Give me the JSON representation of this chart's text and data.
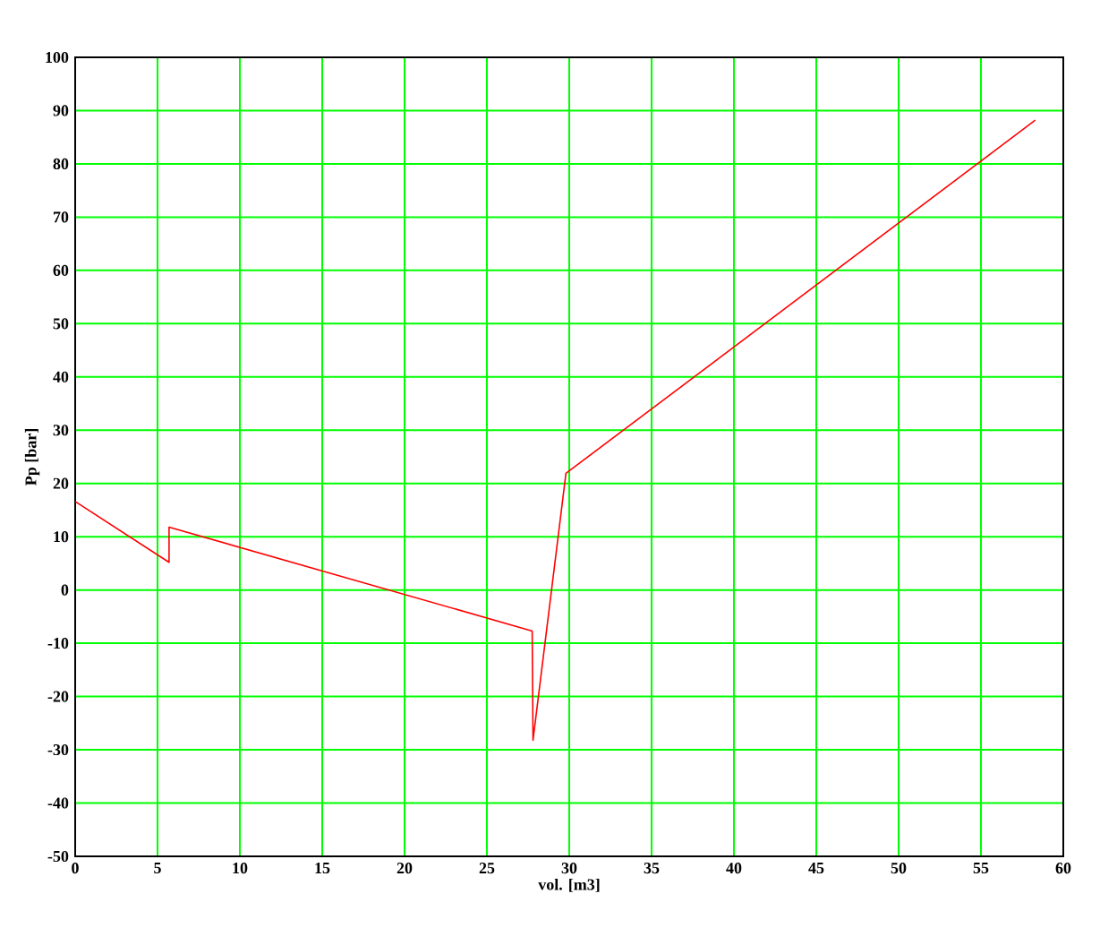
{
  "chart_data": {
    "type": "line",
    "xlabel": "vol. [m3]",
    "ylabel": "Pp [bar]",
    "x": [
      0,
      5.7,
      5.7,
      27.75,
      27.8,
      29.8,
      58.3
    ],
    "series": [
      {
        "color": "#ff0000",
        "values": [
          16.6,
          5.2,
          11.8,
          -7.7,
          -28.2,
          21.9,
          88.2
        ]
      }
    ],
    "xlim": [
      0,
      60
    ],
    "ylim": [
      -50,
      100
    ],
    "xticks": [
      0,
      5,
      10,
      15,
      20,
      25,
      30,
      35,
      40,
      45,
      50,
      55,
      60
    ],
    "yticks": [
      -50,
      -40,
      -30,
      -20,
      -10,
      0,
      10,
      20,
      30,
      40,
      50,
      60,
      70,
      80,
      90,
      100
    ],
    "grid": true,
    "marker": "none",
    "line_style": "solid"
  }
}
